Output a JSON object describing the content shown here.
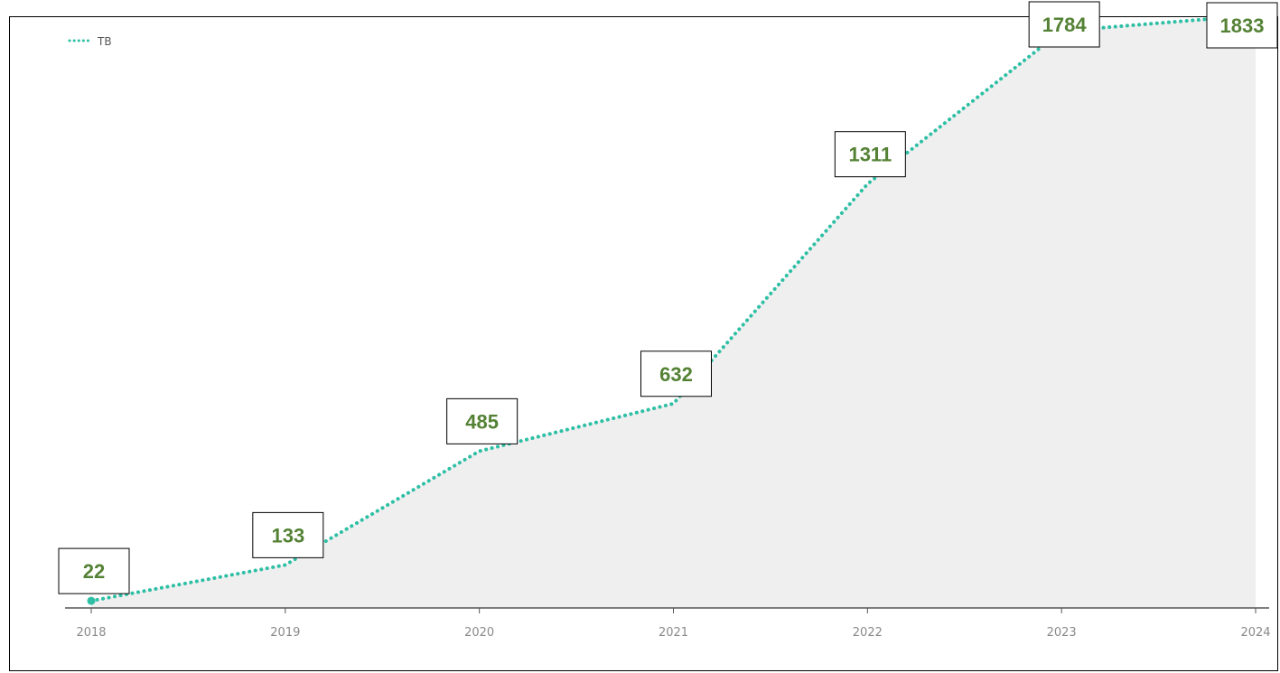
{
  "chart_data": {
    "type": "area",
    "categories": [
      "2018",
      "2019",
      "2020",
      "2021",
      "2022",
      "2023",
      "2024"
    ],
    "series": [
      {
        "name": "TB",
        "values": [
          22,
          133,
          485,
          632,
          1311,
          1784,
          1833
        ]
      }
    ],
    "data_labels": [
      "22",
      "133",
      "485",
      "632",
      "1311",
      "1784",
      "1833"
    ],
    "title": "",
    "xlabel": "",
    "ylabel": "",
    "ylim": [
      0,
      1880
    ],
    "grid": false,
    "legend": "top-left",
    "colors": {
      "line": "#2ebfa5",
      "area": "#efefef",
      "label_text": "#548235",
      "label_border": "#000000",
      "axis": "#555555",
      "tick_text": "#8a8a8a"
    }
  }
}
